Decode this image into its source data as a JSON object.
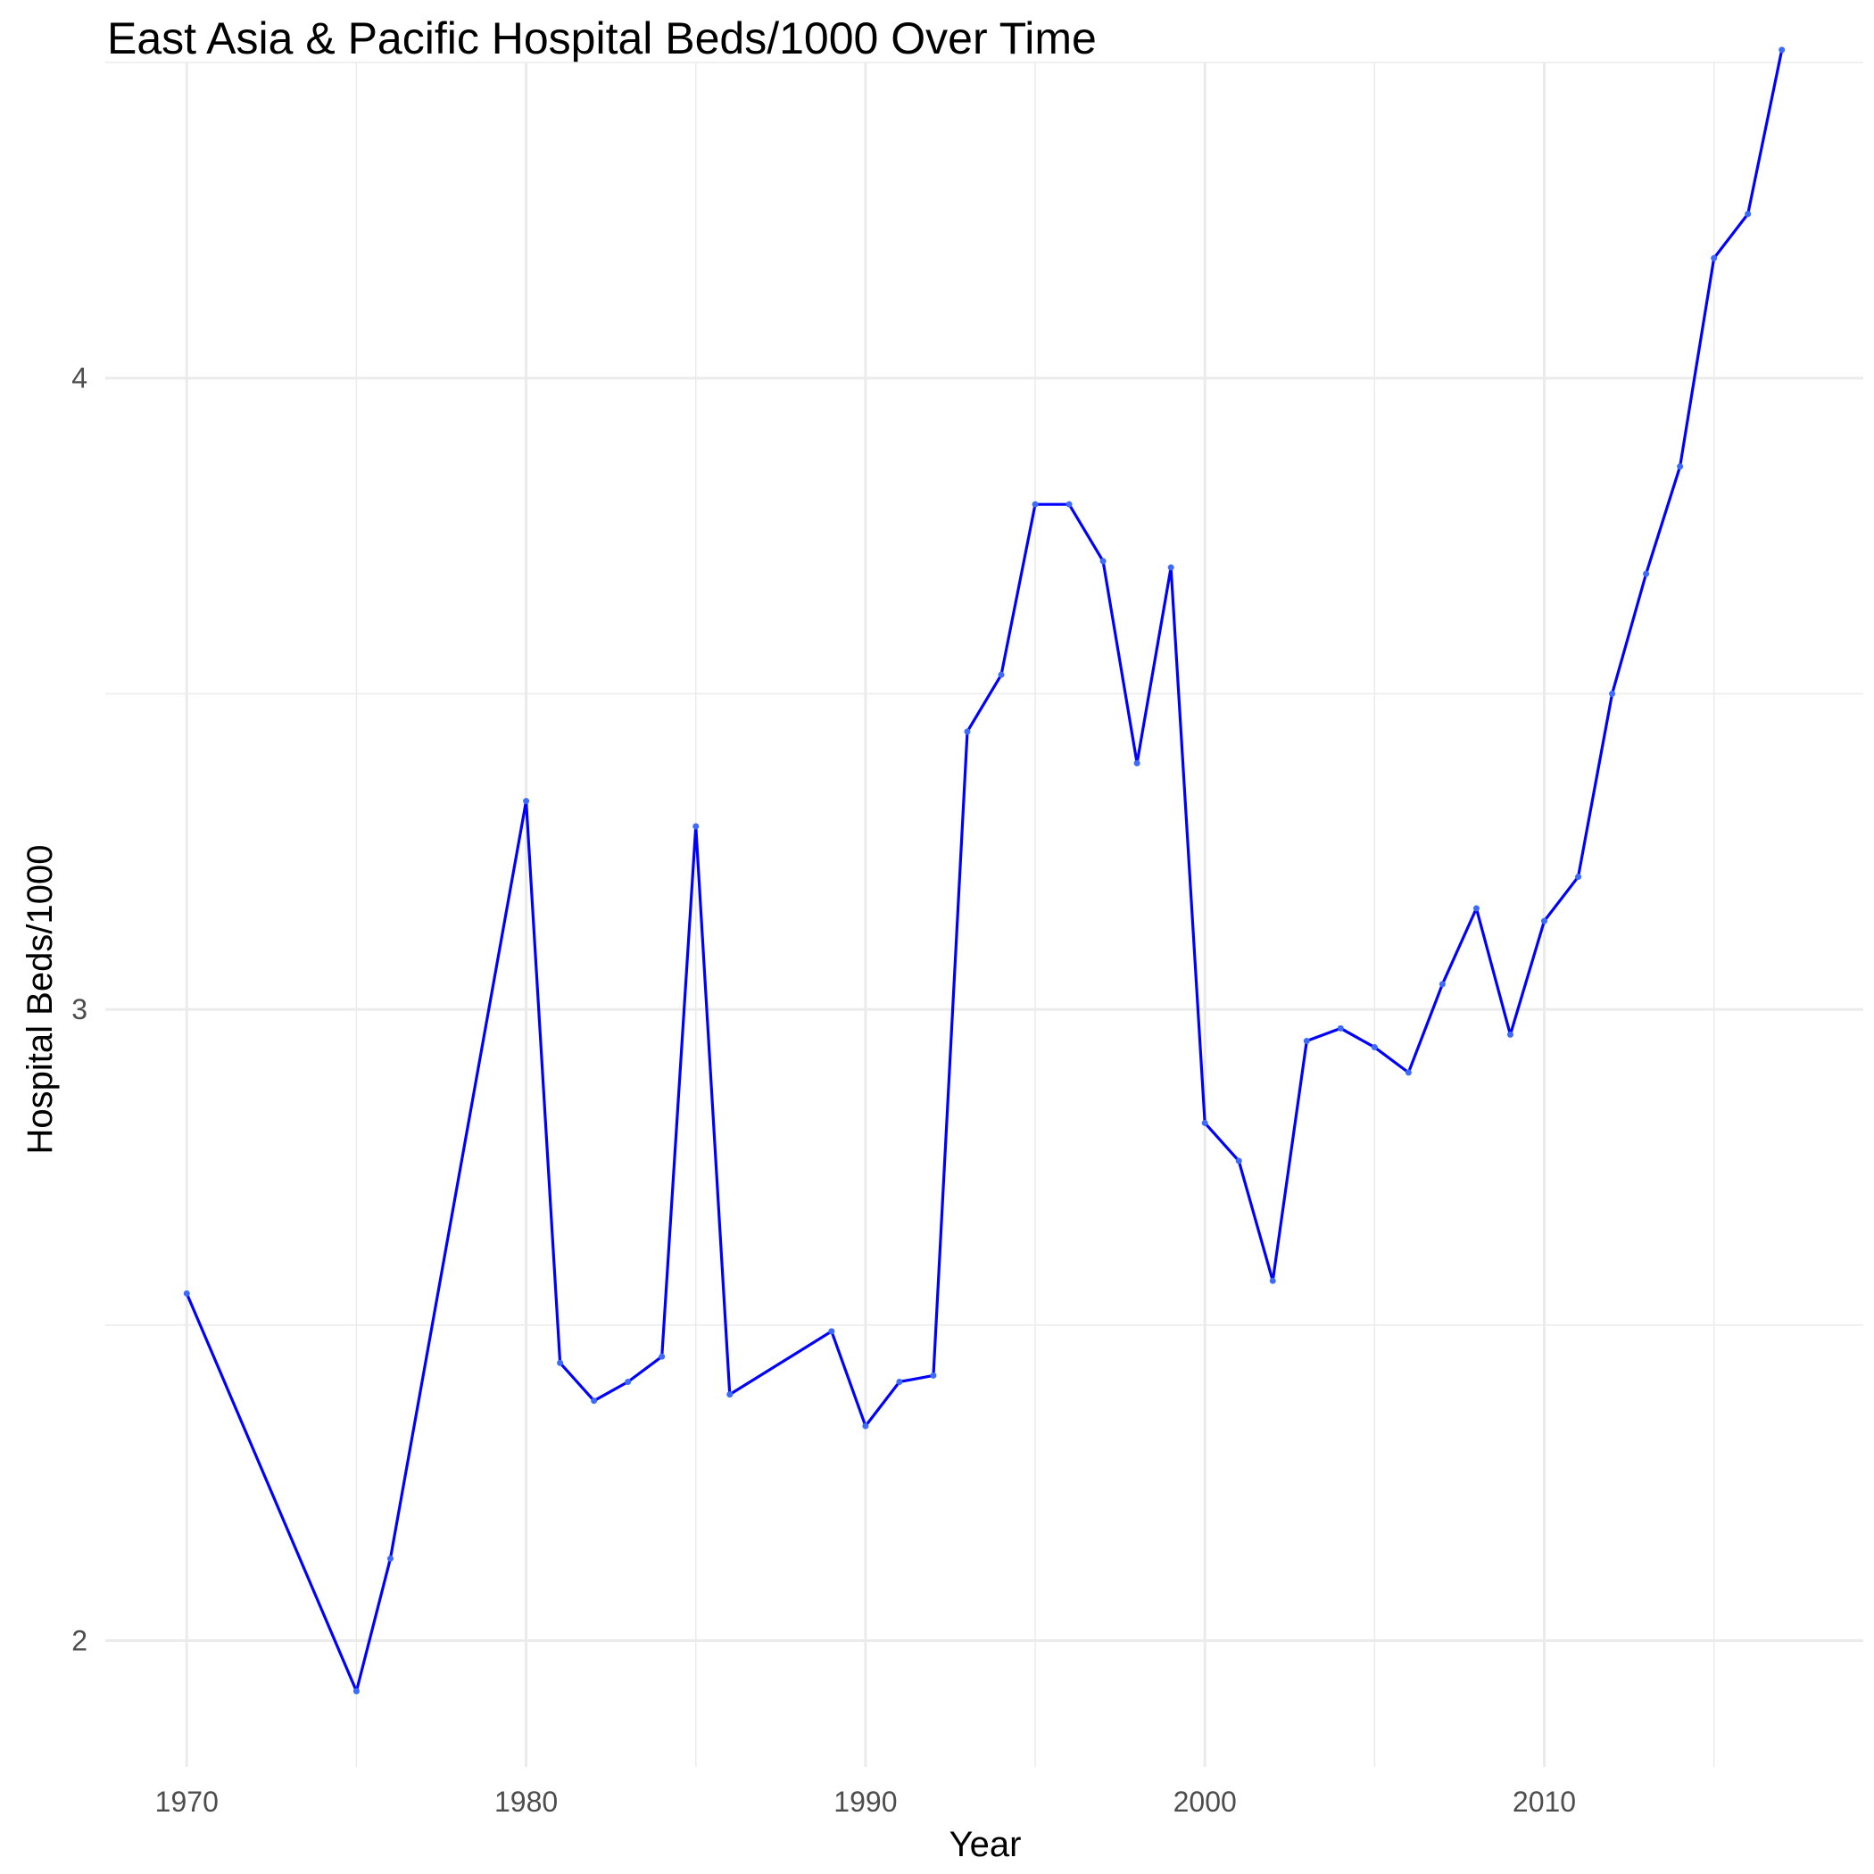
{
  "chart_data": {
    "type": "line",
    "title": "East Asia & Pacific Hospital Beds/1000 Over Time",
    "xlabel": "Year",
    "ylabel": "Hospital Beds/1000",
    "xlim": [
      1967.6,
      2019.4
    ],
    "ylim": [
      1.8,
      4.5
    ],
    "xticks": [
      1970,
      1980,
      1990,
      2000,
      2010
    ],
    "yticks": [
      2,
      3,
      4
    ],
    "grid": true,
    "legend": "none",
    "colors": {
      "line": "#0000ff",
      "grid": "#ebebeb"
    },
    "series": [
      {
        "x": [
          1970,
          1975,
          1976,
          1980,
          1981,
          1982,
          1983,
          1984,
          1985,
          1986,
          1989,
          1990,
          1991,
          1992,
          1993,
          1994,
          1995,
          1996,
          1997,
          1998,
          1999,
          2000,
          2001,
          2002,
          2003,
          2004,
          2005,
          2006,
          2007,
          2008,
          2009,
          2010,
          2011,
          2012,
          2013,
          2014,
          2015,
          2016,
          2017
        ],
        "y": [
          2.55,
          1.92,
          2.13,
          3.33,
          2.44,
          2.38,
          2.41,
          2.45,
          3.29,
          2.39,
          2.49,
          2.34,
          2.41,
          2.42,
          3.44,
          3.53,
          3.8,
          3.8,
          3.71,
          3.39,
          3.7,
          2.82,
          2.76,
          2.57,
          2.95,
          2.97,
          2.94,
          2.9,
          3.04,
          3.16,
          2.96,
          3.14,
          3.21,
          3.5,
          3.69,
          3.86,
          4.19,
          4.26,
          4.52
        ]
      }
    ]
  }
}
